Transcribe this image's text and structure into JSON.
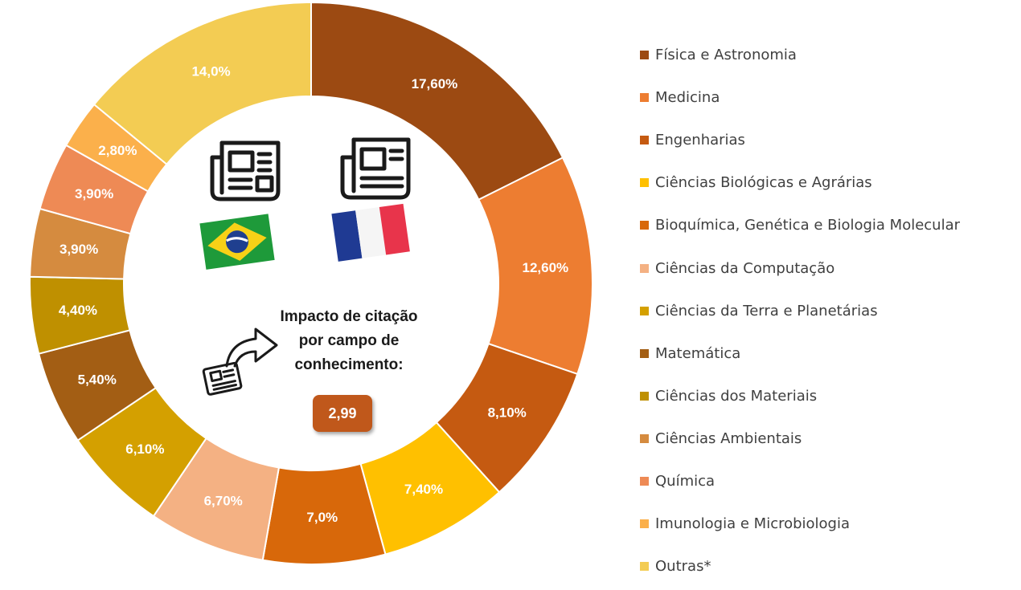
{
  "chart_data": {
    "type": "pie",
    "variant": "donut",
    "start_angle_deg": 0,
    "direction": "clockwise",
    "slices": [
      {
        "label": "Física e Astronomia",
        "value": 17.6,
        "display": "17,60%",
        "color": "#9C4A12"
      },
      {
        "label": "Medicina",
        "value": 12.6,
        "display": "12,60%",
        "color": "#ED7D31"
      },
      {
        "label": "Engenharias",
        "value": 8.1,
        "display": "8,10%",
        "color": "#C55A11"
      },
      {
        "label": "Ciências Biológicas e Agrárias",
        "value": 7.4,
        "display": "7,40%",
        "color": "#FFC000"
      },
      {
        "label": "Bioquímica, Genética e Biologia Molecular",
        "value": 7.0,
        "display": "7,0%",
        "color": "#D8680A"
      },
      {
        "label": "Ciências da Computação",
        "value": 6.7,
        "display": "6,70%",
        "color": "#F4B183"
      },
      {
        "label": "Ciências da Terra e Planetárias",
        "value": 6.1,
        "display": "6,10%",
        "color": "#D4A000"
      },
      {
        "label": "Matemática",
        "value": 5.4,
        "display": "5,40%",
        "color": "#A35E14"
      },
      {
        "label": "Ciências dos Materiais",
        "value": 4.4,
        "display": "4,40%",
        "color": "#BF9000"
      },
      {
        "label": "Ciências Ambientais",
        "value": 3.9,
        "display": "3,90%",
        "color": "#D58B3F"
      },
      {
        "label": "Química",
        "value": 3.9,
        "display": "3,90%",
        "color": "#EE8A55"
      },
      {
        "label": "Imunologia e Microbiologia",
        "value": 2.8,
        "display": "2,80%",
        "color": "#FBB04B"
      },
      {
        "label": "Outras*",
        "value": 14.0,
        "display": "14,0%",
        "color": "#F3CC53"
      }
    ],
    "legend_position": "right"
  },
  "center": {
    "lines": [
      "Impacto de citação",
      "por campo de",
      "conhecimento:"
    ],
    "metric": "2,99",
    "metric_color": "#C0581B"
  },
  "icons": [
    "newspaper-icon",
    "newspaper-icon",
    "brazil-flag-icon",
    "france-flag-icon",
    "citation-arrow-icon"
  ]
}
